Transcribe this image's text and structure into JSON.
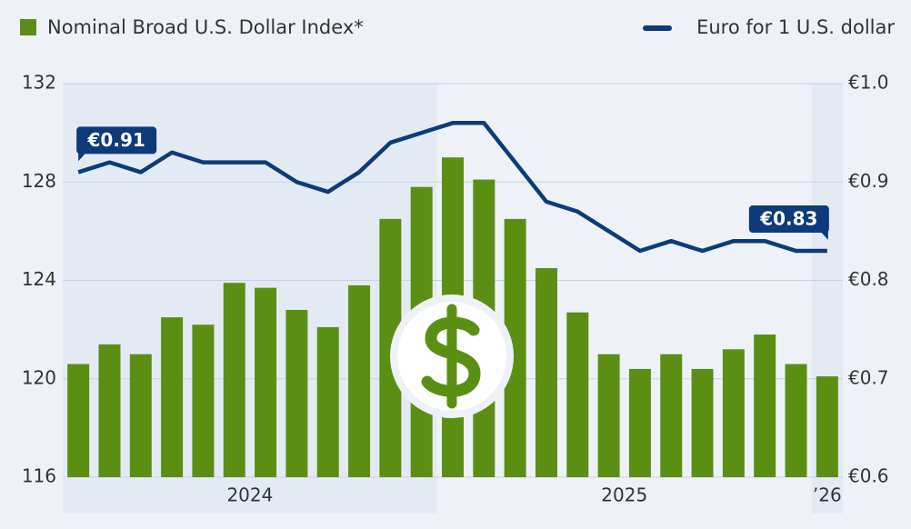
{
  "chart_data": {
    "type": "bar-line",
    "categories": [
      null,
      null,
      null,
      null,
      null,
      null,
      null,
      null,
      null,
      null,
      null,
      null,
      null,
      null,
      null,
      null,
      null,
      null,
      null,
      null,
      null,
      null,
      null,
      null,
      null
    ],
    "year_groups": [
      {
        "label": "2024",
        "count": 12
      },
      {
        "label": "2025",
        "count": 12
      },
      {
        "label": "’26",
        "count": 1
      }
    ],
    "series": [
      {
        "name": "Nominal Broad U.S. Dollar Index*",
        "type": "bar",
        "color": "#5b8f14",
        "values": [
          120.6,
          121.4,
          121.0,
          122.5,
          122.2,
          123.9,
          123.7,
          122.8,
          122.1,
          123.8,
          126.5,
          127.8,
          129.0,
          128.1,
          126.5,
          124.5,
          122.7,
          121.0,
          120.4,
          121.0,
          120.4,
          121.2,
          121.8,
          120.6,
          120.1
        ]
      },
      {
        "name": "Euro for 1 U.S. dollar",
        "type": "line",
        "axis": "y2",
        "color": "#0d3b7a",
        "values": [
          0.91,
          0.92,
          0.91,
          0.93,
          0.92,
          0.92,
          0.92,
          0.9,
          0.89,
          0.91,
          0.94,
          0.95,
          0.96,
          0.96,
          0.92,
          0.88,
          0.87,
          0.85,
          0.83,
          0.84,
          0.83,
          0.84,
          0.84,
          0.83,
          0.83
        ],
        "value_labels": [
          "€0.91",
          null,
          null,
          null,
          null,
          null,
          null,
          null,
          null,
          null,
          null,
          null,
          null,
          null,
          null,
          null,
          null,
          null,
          null,
          null,
          null,
          null,
          null,
          null,
          "€0.83"
        ]
      }
    ],
    "ylim": [
      116,
      132
    ],
    "yticks": [
      116,
      120,
      124,
      128,
      132
    ],
    "y2lim": [
      0.6,
      1.0
    ],
    "y2ticks": [
      {
        "value": 0.6,
        "label": "€0.6"
      },
      {
        "value": 0.7,
        "label": "€0.7"
      },
      {
        "value": 0.8,
        "label": "€0.8"
      },
      {
        "value": 0.9,
        "label": "€0.9"
      },
      {
        "value": 1.0,
        "label": "€1.0"
      }
    ],
    "grid": true
  }
}
